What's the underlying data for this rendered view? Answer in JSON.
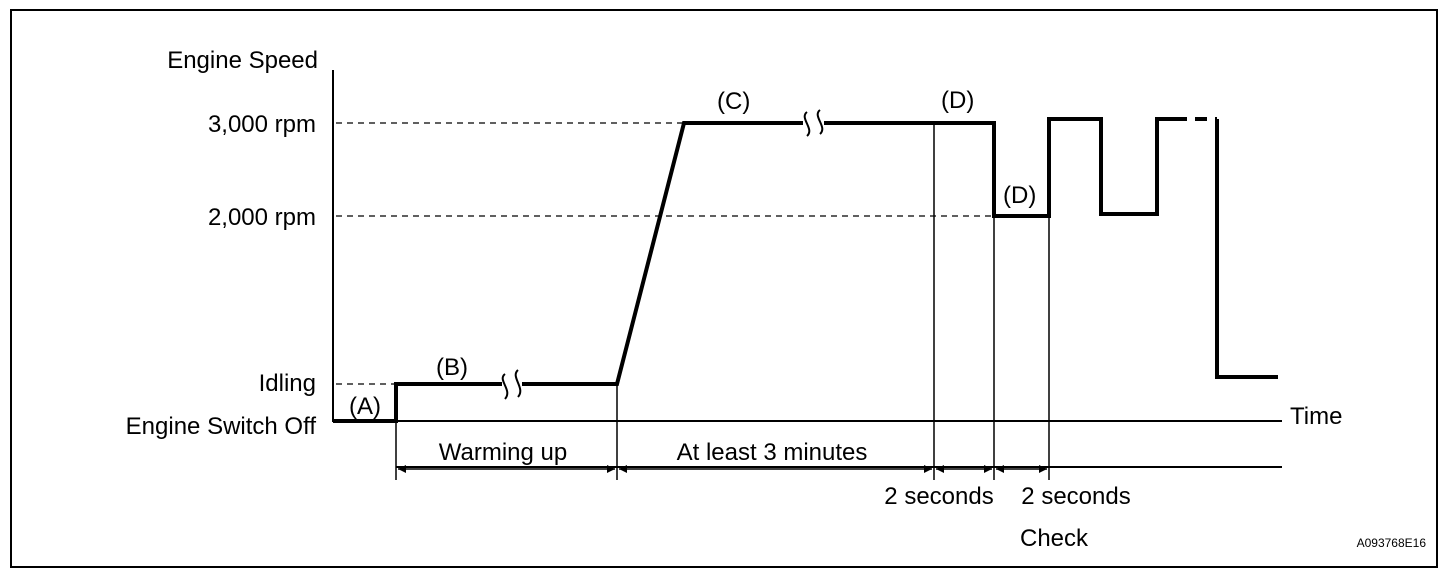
{
  "y_axis": {
    "title": "Engine Speed",
    "ticks": [
      "3,000 rpm",
      "2,000 rpm",
      "Idling",
      "Engine Switch Off"
    ]
  },
  "x_axis": {
    "title": "Time"
  },
  "phases": {
    "a": "(A)",
    "b": "(B)",
    "c": "(C)",
    "d1": "(D)",
    "d2": "(D)"
  },
  "intervals": {
    "warming_up": "Warming up",
    "at_least": "At least 3 minutes",
    "two_sec_1": "2 seconds",
    "two_sec_2": "2 seconds",
    "check": "Check"
  },
  "code": "A093768E16"
}
